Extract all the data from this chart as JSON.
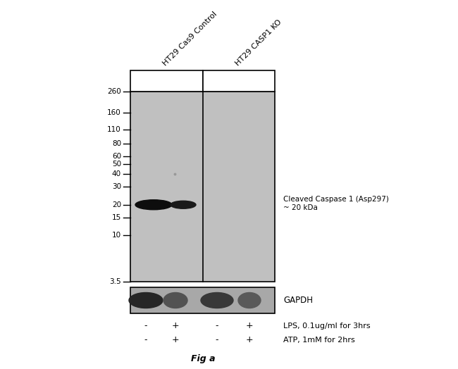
{
  "bg_color": "#ffffff",
  "gel_bg_color": "#c0c0c0",
  "gapdh_bg_color": "#a8a8a8",
  "mw_markers": [
    260,
    160,
    110,
    80,
    60,
    50,
    40,
    30,
    20,
    15,
    10,
    3.5
  ],
  "col_labels": [
    "HT29 Cas9 Control",
    "HT29 CASP1 KO"
  ],
  "band_annotation_line1": "Cleaved Caspase 1 (Asp297)",
  "band_annotation_line2": "~ 20 kDa",
  "gapdh_label": "GAPDH",
  "treatment_labels": [
    "LPS, 0.1ug/ml for 3hrs",
    "ATP, 1mM for 2hrs"
  ],
  "plus_minus_lps": [
    "-",
    "+",
    "-",
    "+"
  ],
  "plus_minus_atp": [
    "-",
    "+",
    "-",
    "+"
  ],
  "fig_label": "Fig a"
}
